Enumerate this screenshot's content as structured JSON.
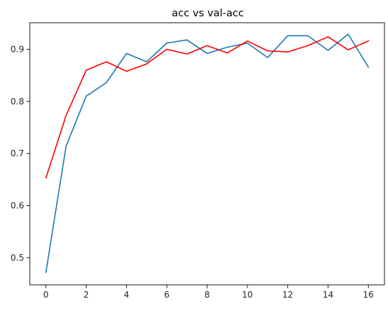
{
  "chart_data": {
    "type": "line",
    "title": "acc vs val-acc",
    "xlabel": "",
    "ylabel": "",
    "x": [
      0,
      1,
      2,
      3,
      4,
      5,
      6,
      7,
      8,
      9,
      10,
      11,
      12,
      13,
      14,
      15,
      16
    ],
    "xlim": [
      -0.8,
      16.8
    ],
    "ylim": [
      0.448,
      0.951
    ],
    "xticks": [
      0,
      2,
      4,
      6,
      8,
      10,
      12,
      14,
      16
    ],
    "yticks": [
      0.5,
      0.6,
      0.7,
      0.8,
      0.9
    ],
    "ytick_labels": [
      "0.5",
      "0.6",
      "0.7",
      "0.8",
      "0.9"
    ],
    "grid": false,
    "series": [
      {
        "color": "#1f77b4",
        "values": [
          0.472,
          0.714,
          0.81,
          0.836,
          0.892,
          0.876,
          0.912,
          0.918,
          0.892,
          0.904,
          0.912,
          0.884,
          0.926,
          0.926,
          0.898,
          0.929,
          0.866
        ]
      },
      {
        "color": "#ff0000",
        "values": [
          0.653,
          0.773,
          0.86,
          0.876,
          0.858,
          0.872,
          0.9,
          0.891,
          0.907,
          0.893,
          0.916,
          0.897,
          0.895,
          0.907,
          0.924,
          0.899,
          0.916
        ]
      }
    ]
  }
}
